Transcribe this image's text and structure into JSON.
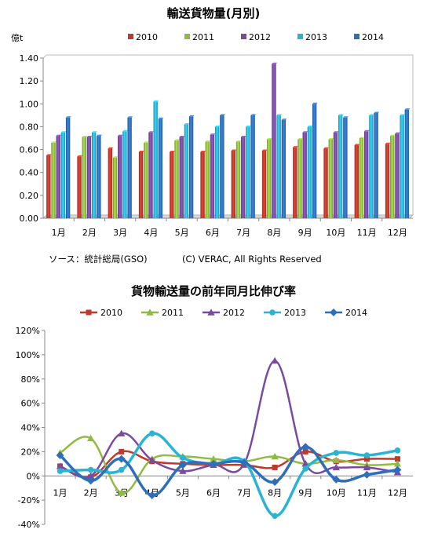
{
  "chart_data": [
    {
      "type": "bar",
      "title": "輸送貨物量(月別)",
      "ylabel": "億t",
      "ylim": [
        0,
        1.4
      ],
      "yticks": [
        "0.00",
        "0.20",
        "0.40",
        "0.60",
        "0.80",
        "1.00",
        "1.20",
        "1.40"
      ],
      "ytick_values": [
        0,
        0.2,
        0.4,
        0.6,
        0.8,
        1.0,
        1.2,
        1.4
      ],
      "grid": false,
      "legend": "top",
      "categories": [
        "1月",
        "2月",
        "3月",
        "4月",
        "5月",
        "6月",
        "7月",
        "8月",
        "9月",
        "10月",
        "11月",
        "12月"
      ],
      "series": [
        {
          "name": "2010",
          "color": "#c0392b",
          "values": [
            0.55,
            0.54,
            0.61,
            0.58,
            0.58,
            0.58,
            0.59,
            0.59,
            0.62,
            0.61,
            0.64,
            0.65
          ]
        },
        {
          "name": "2011",
          "color": "#8fbc3f",
          "values": [
            0.66,
            0.71,
            0.53,
            0.66,
            0.68,
            0.67,
            0.67,
            0.69,
            0.69,
            0.69,
            0.7,
            0.72
          ]
        },
        {
          "name": "2012",
          "color": "#7a4aa0",
          "values": [
            0.72,
            0.71,
            0.72,
            0.75,
            0.71,
            0.73,
            0.71,
            1.35,
            0.75,
            0.75,
            0.76,
            0.74
          ]
        },
        {
          "name": "2013",
          "color": "#2bb3d4",
          "values": [
            0.75,
            0.75,
            0.76,
            1.02,
            0.82,
            0.8,
            0.8,
            0.9,
            0.8,
            0.9,
            0.9,
            0.9
          ]
        },
        {
          "name": "2014",
          "color": "#2f6fba",
          "values": [
            0.88,
            0.72,
            0.88,
            0.87,
            0.89,
            0.9,
            0.9,
            0.86,
            1.0,
            0.88,
            0.92,
            0.95
          ]
        }
      ],
      "source": "ソース：統計総局(GSO)",
      "copyright": "(C) VERAC, All Rights Reserved"
    },
    {
      "type": "line",
      "title": "貨物輸送量の前年同月比伸び率",
      "ylim": [
        -40,
        120
      ],
      "yticks": [
        "-40%",
        "-20%",
        "0%",
        "20%",
        "40%",
        "60%",
        "80%",
        "100%",
        "120%"
      ],
      "ytick_values": [
        -40,
        -20,
        0,
        20,
        40,
        60,
        80,
        100,
        120
      ],
      "grid": false,
      "legend": "top",
      "categories": [
        "1月",
        "2月",
        "3月",
        "4月",
        "5月",
        "6月",
        "7月",
        "8月",
        "9月",
        "10月",
        "11月",
        "12月"
      ],
      "series": [
        {
          "name": "2010",
          "color": "#c0392b",
          "marker": "square",
          "values": [
            8,
            -1,
            20,
            12,
            10,
            9,
            9,
            7,
            20,
            12,
            14,
            14
          ]
        },
        {
          "name": "2011",
          "color": "#8fbc3f",
          "marker": "triangle",
          "values": [
            19,
            31,
            -14,
            14,
            16,
            14,
            12,
            16,
            10,
            13,
            9,
            10
          ]
        },
        {
          "name": "2012",
          "color": "#7a4aa0",
          "marker": "triangle",
          "values": [
            8,
            0,
            35,
            13,
            4,
            9,
            10,
            95,
            10,
            7,
            7,
            3
          ]
        },
        {
          "name": "2013",
          "color": "#2bb3d4",
          "marker": "circle",
          "values": [
            4,
            5,
            5,
            35,
            15,
            10,
            12,
            -33,
            6,
            19,
            17,
            21
          ]
        },
        {
          "name": "2014",
          "color": "#2f6fba",
          "marker": "diamond",
          "values": [
            17,
            -4,
            14,
            -16,
            9,
            10,
            11,
            -5,
            24,
            -3,
            1,
            5
          ]
        }
      ]
    }
  ]
}
